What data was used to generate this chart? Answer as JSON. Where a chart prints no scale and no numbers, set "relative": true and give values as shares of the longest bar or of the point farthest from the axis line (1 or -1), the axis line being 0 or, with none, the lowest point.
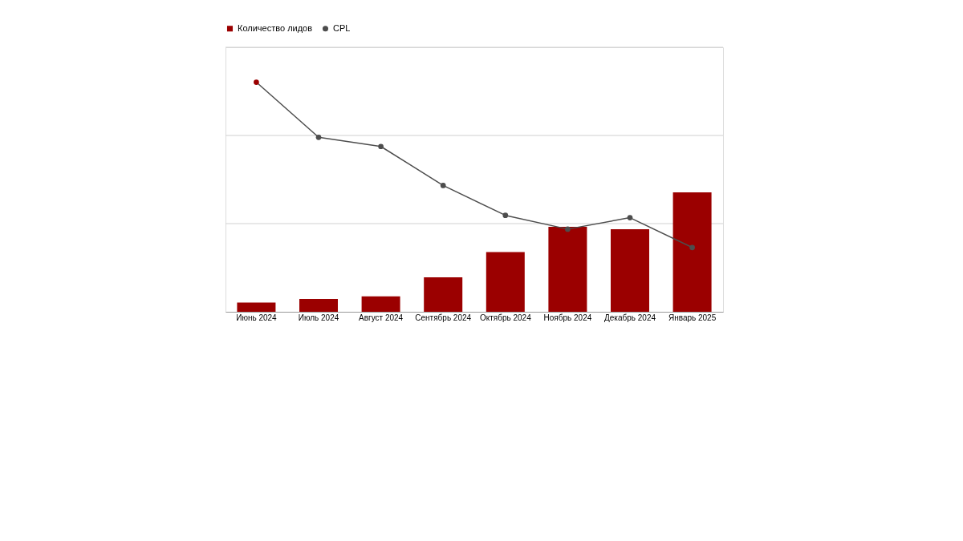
{
  "chart_data": {
    "type": "bar",
    "relative": true,
    "legend": "top",
    "ref_lines": [
      {
        "axis": "y",
        "value": 0.384,
        "color": "#d0d0d0"
      },
      {
        "axis": "y",
        "value": 0.768,
        "color": "#d0d0d0"
      },
      {
        "axis": "y",
        "value": 1.152,
        "color": "#d0d0d0"
      }
    ],
    "categories": [
      "Июнь 2024",
      "Июль 2024",
      "Август 2024",
      "Сентябрь 2024",
      "Октябрь 2024",
      "Ноябрь 2024",
      "Декабрь 2024",
      "Январь 2025"
    ],
    "series": [
      {
        "name": "Количество лидов",
        "color": "#9b0000",
        "values": [
          0.04,
          0.056,
          0.067,
          0.15,
          0.26,
          0.37,
          0.36,
          0.52
        ]
      },
      {
        "name": "CPL",
        "type": "line",
        "color": "#4d4d4d",
        "marker": "circle",
        "colors": [
          "#9b0000",
          "#4d4d4d",
          "#4d4d4d",
          "#4d4d4d",
          "#4d4d4d",
          "#4d4d4d",
          "#4d4d4d",
          "#4d4d4d"
        ],
        "values": [
          1,
          0.76,
          0.72,
          0.55,
          0.42,
          0.36,
          0.41,
          0.28
        ]
      }
    ]
  }
}
